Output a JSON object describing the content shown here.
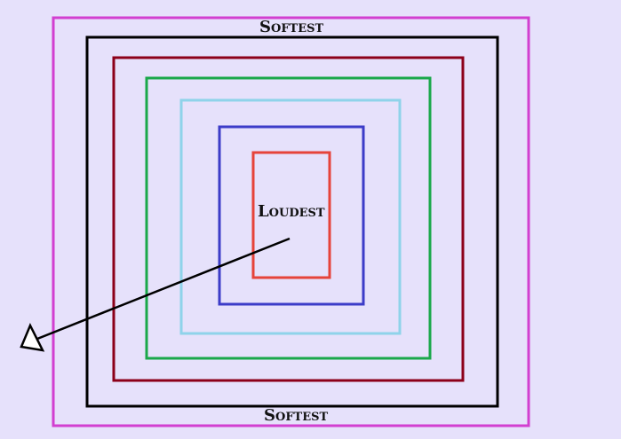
{
  "labels": {
    "top": "Softest",
    "center": "Loudest",
    "bottom": "Softest"
  },
  "colors": {
    "background": "#e6e1fb",
    "outermost": "#d23fd0",
    "level_1": "#000000",
    "level_2": "#8c0019",
    "level_3": "#1aa84a",
    "level_4": "#8fd3ea",
    "level_5": "#3c3cc8",
    "innermost": "#e6433a",
    "arrow": "#000000"
  }
}
